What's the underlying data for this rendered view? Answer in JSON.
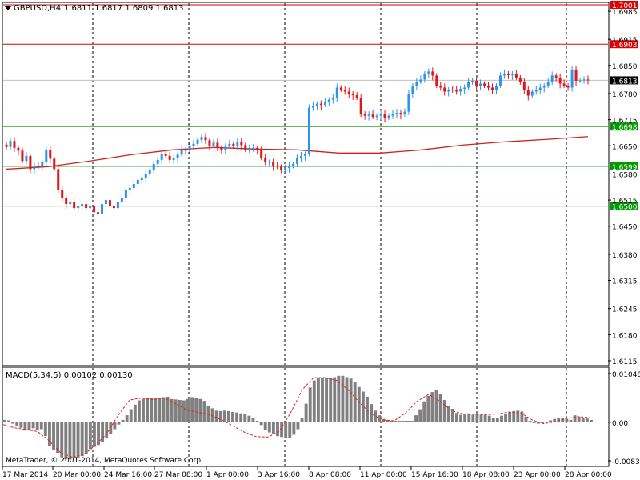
{
  "chart_data": [
    {
      "type": "candlestick",
      "title": "GBPUSD,H4",
      "ohlc_summary": "1.6811 1.6817 1.6809 1.6813",
      "ylim": [
        1.6105,
        1.7005
      ],
      "y_ticks": [
        "1.6985",
        "1.6915",
        "1.6850",
        "1.6780",
        "1.6715",
        "1.6650",
        "1.6580",
        "1.6515",
        "1.6450",
        "1.6380",
        "1.6315",
        "1.6245",
        "1.6180",
        "1.6115"
      ],
      "x_ticks": [
        "17 Mar 2014",
        "20 Mar 00:00",
        "24 Mar 16:00",
        "27 Mar 08:00",
        "1 Apr 00:00",
        "3 Apr 16:00",
        "8 Apr 08:00",
        "11 Apr 00:00",
        "15 Apr 16:00",
        "18 Apr 08:00",
        "23 Apr 00:00",
        "28 Apr 00:00"
      ],
      "horizontal_levels": [
        {
          "label": "1.7001",
          "value": 1.7001,
          "color": "#dd0000"
        },
        {
          "label": "1.6903",
          "value": 1.6903,
          "color": "#dd0000"
        },
        {
          "label": "1.6698",
          "value": 1.6698,
          "color": "#009900"
        },
        {
          "label": "1.6599",
          "value": 1.6599,
          "color": "#009900"
        },
        {
          "label": "1.6500",
          "value": 1.65,
          "color": "#009900"
        }
      ],
      "current_price": {
        "label": "1.6813",
        "value": 1.6813
      },
      "closes": [
        1.6647,
        1.6662,
        1.6645,
        1.6638,
        1.6612,
        1.6625,
        1.6592,
        1.66,
        1.6598,
        1.661,
        1.664,
        1.6618,
        1.6592,
        1.654,
        1.652,
        1.6505,
        1.651,
        1.6495,
        1.65,
        1.6505,
        1.6495,
        1.65,
        1.6485,
        1.648,
        1.6505,
        1.6515,
        1.65,
        1.6495,
        1.651,
        1.652,
        1.654,
        1.6545,
        1.6555,
        1.6565,
        1.657,
        1.658,
        1.659,
        1.6605,
        1.6615,
        1.663,
        1.6625,
        1.6615,
        1.662,
        1.6628,
        1.664,
        1.6638,
        1.665,
        1.6655,
        1.6665,
        1.6672,
        1.6664,
        1.665,
        1.6658,
        1.6645,
        1.664,
        1.6648,
        1.6655,
        1.665,
        1.666,
        1.6652,
        1.664,
        1.6645,
        1.6645,
        1.664,
        1.662,
        1.661,
        1.661,
        1.66,
        1.6598,
        1.659,
        1.6595,
        1.66,
        1.6605,
        1.662,
        1.6625,
        1.663,
        1.6745,
        1.675,
        1.6755,
        1.6752,
        1.6758,
        1.6765,
        1.677,
        1.6795,
        1.679,
        1.6785,
        1.678,
        1.6776,
        1.677,
        1.673,
        1.6725,
        1.6728,
        1.6722,
        1.6725,
        1.673,
        1.672,
        1.6725,
        1.673,
        1.6732,
        1.6728,
        1.6735,
        1.678,
        1.68,
        1.681,
        1.6815,
        1.683,
        1.6835,
        1.6825,
        1.68,
        1.6795,
        1.6785,
        1.679,
        1.6788,
        1.6785,
        1.6792,
        1.6795,
        1.681,
        1.6812,
        1.68,
        1.6805,
        1.68,
        1.6795,
        1.679,
        1.68,
        1.6825,
        1.683,
        1.6826,
        1.6828,
        1.682,
        1.681,
        1.679,
        1.6775,
        1.6785,
        1.679,
        1.6795,
        1.68,
        1.681,
        1.6825,
        1.682,
        1.6805,
        1.68,
        1.6795,
        1.684,
        1.6812,
        1.6813,
        1.6815,
        1.6813
      ],
      "moving_average": [
        1.6592,
        1.6598,
        1.6612,
        1.6628,
        1.664,
        1.6646,
        1.6642,
        1.664,
        1.6632,
        1.6632,
        1.664,
        1.6652,
        1.666,
        1.6666,
        1.6673
      ],
      "grid": false
    },
    {
      "type": "histogram",
      "title": "MACD(5,34,5) 0.00102 0.00130",
      "ylim": [
        -0.00831,
        0.01048
      ],
      "y_ticks": [
        "0.01048",
        "0.00",
        "-0.00831"
      ],
      "values": [
        0.0005,
        0.0004,
        -0.0003,
        -0.0008,
        -0.0012,
        -0.0018,
        -0.0018,
        -0.0013,
        -0.0017,
        -0.0015,
        -0.003,
        -0.0052,
        -0.006,
        -0.0066,
        -0.0075,
        -0.008,
        -0.008,
        -0.0078,
        -0.0078,
        -0.0073,
        -0.0069,
        -0.0058,
        -0.0053,
        -0.0049,
        -0.0043,
        -0.0035,
        -0.0025,
        -0.0015,
        -0.0005,
        0.0005,
        0.0015,
        0.0028,
        0.0038,
        0.0047,
        0.005,
        0.0052,
        0.0052,
        0.0052,
        0.0053,
        0.0054,
        0.0055,
        0.005,
        0.0049,
        0.0048,
        0.0047,
        0.005,
        0.0054,
        0.0052,
        0.005,
        0.0046,
        0.0036,
        0.003,
        0.0025,
        0.0024,
        0.0025,
        0.0024,
        0.0022,
        0.0021,
        0.0019,
        0.0018,
        0.0014,
        0.001,
        0.0003,
        -0.0006,
        -0.0017,
        -0.0022,
        -0.0026,
        -0.003,
        -0.0032,
        -0.0035,
        -0.0033,
        -0.0027,
        -0.0015,
        0.001,
        0.004,
        0.0075,
        0.009,
        0.0095,
        0.0095,
        0.0096,
        0.0096,
        0.0097,
        0.01,
        0.01,
        0.0097,
        0.0094,
        0.0086,
        0.0076,
        0.0066,
        0.0055,
        0.0039,
        0.0025,
        0.0015,
        0.0007,
        0.0005,
        0.0003,
        0.0003,
        0.0003,
        0.0003,
        0.0003,
        0.0003,
        0.0015,
        0.0028,
        0.0045,
        0.0057,
        0.0065,
        0.007,
        0.006,
        0.0048,
        0.0035,
        0.0029,
        0.002,
        0.0016,
        0.0018,
        0.0019,
        0.0016,
        0.0018,
        0.0016,
        0.0016,
        0.0014,
        0.001,
        0.001,
        0.0014,
        0.0018,
        0.0022,
        0.0024,
        0.0025,
        0.0023,
        0.0012,
        0.0003,
        -0.0001,
        -0.0003,
        -0.0002,
        0.0001,
        0.0004,
        0.0007,
        0.001,
        0.0009,
        0.0007,
        0.0005,
        0.0015,
        0.0012,
        0.001,
        0.0008,
        0.0005
      ],
      "signal": [
        -0.0005,
        -0.0012,
        -0.0016,
        -0.002,
        -0.004,
        -0.0066,
        -0.0075,
        -0.007,
        -0.005,
        -0.0025,
        0.0015,
        0.0048,
        0.0052,
        0.0049,
        0.0052,
        0.004,
        0.0026,
        0.0021,
        0.0016,
        0.0005,
        -0.0008,
        -0.0022,
        -0.0031,
        -0.0032,
        -0.002,
        0.002,
        0.007,
        0.0096,
        0.0096,
        0.009,
        0.007,
        0.0042,
        0.0018,
        0.0005,
        0.0003,
        0.002,
        0.0045,
        0.006,
        0.0045,
        0.0025,
        0.0018,
        0.0017,
        0.0016,
        0.0018,
        0.0022,
        0.002,
        0.0005,
        -0.0003,
        0.0001,
        0.0008,
        0.0012,
        0.001
      ],
      "grid": false
    }
  ],
  "copyright": "MetaTrader, © 2001-2014, MetaQuotes Software Corp."
}
